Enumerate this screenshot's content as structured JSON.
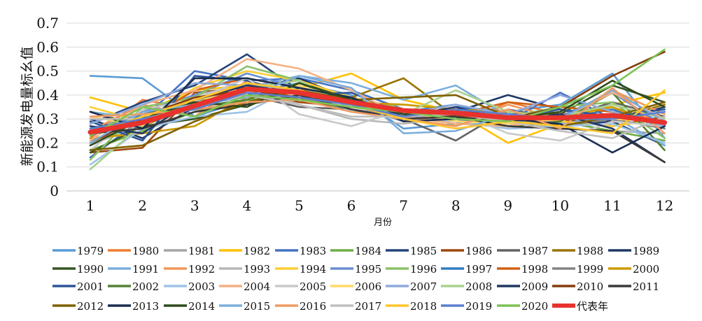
{
  "chart_data": {
    "type": "line",
    "title": "",
    "xlabel": "月份",
    "ylabel": "新能源发电量标幺值",
    "x": [
      1,
      2,
      3,
      4,
      5,
      6,
      7,
      8,
      9,
      10,
      11,
      12
    ],
    "x_tick_labels": [
      "1",
      "2",
      "3",
      "4",
      "5",
      "6",
      "7",
      "8",
      "9",
      "10",
      "11",
      "12"
    ],
    "y_tick_labels": [
      "0",
      "0.1",
      "0.2",
      "0.3",
      "0.4",
      "0.5",
      "0.6",
      "0.7"
    ],
    "ylim": [
      0,
      0.7
    ],
    "grid": "horizontal",
    "legend_position": "bottom",
    "series": [
      {
        "name": "1979",
        "color": "#5b9bd5",
        "values": [
          0.48,
          0.47,
          0.31,
          0.38,
          0.45,
          0.4,
          0.26,
          0.28,
          0.33,
          0.36,
          0.49,
          0.22
        ]
      },
      {
        "name": "1980",
        "color": "#ed7d31",
        "values": [
          0.22,
          0.38,
          0.34,
          0.36,
          0.4,
          0.38,
          0.3,
          0.27,
          0.37,
          0.32,
          0.34,
          0.29
        ]
      },
      {
        "name": "1981",
        "color": "#a5a5a5",
        "values": [
          0.26,
          0.32,
          0.37,
          0.41,
          0.37,
          0.35,
          0.33,
          0.3,
          0.31,
          0.29,
          0.25,
          0.24
        ]
      },
      {
        "name": "1982",
        "color": "#ffc000",
        "values": [
          0.39,
          0.33,
          0.42,
          0.44,
          0.43,
          0.49,
          0.38,
          0.33,
          0.2,
          0.28,
          0.36,
          0.41
        ]
      },
      {
        "name": "1983",
        "color": "#4472c4",
        "values": [
          0.14,
          0.3,
          0.5,
          0.46,
          0.47,
          0.42,
          0.34,
          0.31,
          0.29,
          0.41,
          0.3,
          0.33
        ]
      },
      {
        "name": "1984",
        "color": "#70ad47",
        "values": [
          0.17,
          0.25,
          0.33,
          0.38,
          0.39,
          0.33,
          0.31,
          0.28,
          0.3,
          0.29,
          0.25,
          0.21
        ]
      },
      {
        "name": "1985",
        "color": "#264478",
        "values": [
          0.28,
          0.37,
          0.44,
          0.57,
          0.42,
          0.38,
          0.33,
          0.3,
          0.33,
          0.27,
          0.29,
          0.19
        ]
      },
      {
        "name": "1986",
        "color": "#9e480e",
        "values": [
          0.16,
          0.18,
          0.41,
          0.43,
          0.37,
          0.35,
          0.32,
          0.3,
          0.28,
          0.3,
          0.27,
          0.31
        ]
      },
      {
        "name": "1987",
        "color": "#636363",
        "values": [
          0.21,
          0.27,
          0.38,
          0.4,
          0.35,
          0.34,
          0.3,
          0.21,
          0.34,
          0.3,
          0.37,
          0.31
        ]
      },
      {
        "name": "1988",
        "color": "#997300",
        "values": [
          0.33,
          0.27,
          0.36,
          0.45,
          0.38,
          0.39,
          0.47,
          0.31,
          0.31,
          0.27,
          0.3,
          0.36
        ]
      },
      {
        "name": "1989",
        "color": "#1f3864",
        "values": [
          0.3,
          0.22,
          0.35,
          0.42,
          0.47,
          0.38,
          0.29,
          0.33,
          0.4,
          0.34,
          0.29,
          0.35
        ]
      },
      {
        "name": "1990",
        "color": "#375623",
        "values": [
          0.16,
          0.27,
          0.3,
          0.36,
          0.45,
          0.39,
          0.32,
          0.3,
          0.31,
          0.32,
          0.44,
          0.37
        ]
      },
      {
        "name": "1991",
        "color": "#7cafdd",
        "values": [
          0.33,
          0.3,
          0.35,
          0.43,
          0.48,
          0.45,
          0.38,
          0.44,
          0.31,
          0.28,
          0.31,
          0.19
        ]
      },
      {
        "name": "1992",
        "color": "#f1975a",
        "values": [
          0.25,
          0.36,
          0.31,
          0.46,
          0.4,
          0.34,
          0.3,
          0.27,
          0.36,
          0.3,
          0.42,
          0.32
        ]
      },
      {
        "name": "1993",
        "color": "#b7b7b7",
        "values": [
          0.19,
          0.28,
          0.4,
          0.44,
          0.36,
          0.3,
          0.28,
          0.31,
          0.28,
          0.27,
          0.31,
          0.29
        ]
      },
      {
        "name": "1994",
        "color": "#ffcd33",
        "values": [
          0.35,
          0.29,
          0.43,
          0.5,
          0.46,
          0.39,
          0.34,
          0.33,
          0.31,
          0.29,
          0.27,
          0.3
        ]
      },
      {
        "name": "1995",
        "color": "#698ed0",
        "values": [
          0.23,
          0.33,
          0.4,
          0.49,
          0.43,
          0.36,
          0.29,
          0.35,
          0.33,
          0.31,
          0.41,
          0.27
        ]
      },
      {
        "name": "1996",
        "color": "#8cc168",
        "values": [
          0.13,
          0.35,
          0.39,
          0.52,
          0.46,
          0.35,
          0.36,
          0.34,
          0.31,
          0.35,
          0.37,
          0.22
        ]
      },
      {
        "name": "1997",
        "color": "#327dc2",
        "values": [
          0.23,
          0.32,
          0.36,
          0.4,
          0.45,
          0.38,
          0.33,
          0.36,
          0.29,
          0.3,
          0.34,
          0.26
        ]
      },
      {
        "name": "1998",
        "color": "#d26012",
        "values": [
          0.25,
          0.29,
          0.42,
          0.47,
          0.43,
          0.37,
          0.33,
          0.32,
          0.37,
          0.35,
          0.33,
          0.28
        ]
      },
      {
        "name": "1999",
        "color": "#848484",
        "values": [
          0.2,
          0.31,
          0.38,
          0.42,
          0.39,
          0.34,
          0.31,
          0.3,
          0.26,
          0.27,
          0.3,
          0.26
        ]
      },
      {
        "name": "2000",
        "color": "#cc9a00",
        "values": [
          0.22,
          0.24,
          0.27,
          0.39,
          0.41,
          0.37,
          0.36,
          0.34,
          0.33,
          0.31,
          0.35,
          0.27
        ]
      },
      {
        "name": "2001",
        "color": "#2e5597",
        "values": [
          0.29,
          0.21,
          0.48,
          0.46,
          0.4,
          0.41,
          0.32,
          0.31,
          0.3,
          0.34,
          0.31,
          0.34
        ]
      },
      {
        "name": "2002",
        "color": "#548235",
        "values": [
          0.26,
          0.3,
          0.35,
          0.38,
          0.45,
          0.37,
          0.33,
          0.31,
          0.27,
          0.29,
          0.41,
          0.17
        ]
      },
      {
        "name": "2003",
        "color": "#9dc3e6",
        "values": [
          0.11,
          0.26,
          0.31,
          0.33,
          0.44,
          0.33,
          0.3,
          0.29,
          0.26,
          0.27,
          0.28,
          0.2
        ]
      },
      {
        "name": "2004",
        "color": "#f4b183",
        "values": [
          0.21,
          0.36,
          0.42,
          0.55,
          0.51,
          0.42,
          0.31,
          0.28,
          0.27,
          0.3,
          0.41,
          0.3
        ]
      },
      {
        "name": "2005",
        "color": "#c9c9c9",
        "values": [
          0.17,
          0.34,
          0.38,
          0.47,
          0.32,
          0.27,
          0.34,
          0.33,
          0.24,
          0.21,
          0.29,
          0.27
        ]
      },
      {
        "name": "2006",
        "color": "#ffd966",
        "values": [
          0.31,
          0.27,
          0.38,
          0.41,
          0.44,
          0.36,
          0.33,
          0.29,
          0.28,
          0.3,
          0.3,
          0.29
        ]
      },
      {
        "name": "2007",
        "color": "#8faadc",
        "values": [
          0.28,
          0.36,
          0.45,
          0.44,
          0.42,
          0.35,
          0.32,
          0.36,
          0.32,
          0.4,
          0.33,
          0.27
        ]
      },
      {
        "name": "2008",
        "color": "#a9d18e",
        "values": [
          0.09,
          0.28,
          0.36,
          0.43,
          0.46,
          0.35,
          0.32,
          0.42,
          0.33,
          0.31,
          0.36,
          0.3
        ]
      },
      {
        "name": "2009",
        "color": "#203864",
        "values": [
          0.27,
          0.24,
          0.38,
          0.44,
          0.41,
          0.39,
          0.31,
          0.35,
          0.29,
          0.32,
          0.26,
          0.12
        ]
      },
      {
        "name": "2010",
        "color": "#843c0c",
        "values": [
          0.2,
          0.31,
          0.39,
          0.42,
          0.39,
          0.37,
          0.33,
          0.31,
          0.3,
          0.35,
          0.48,
          0.58
        ]
      },
      {
        "name": "2011",
        "color": "#3a3a3a",
        "values": [
          0.24,
          0.26,
          0.33,
          0.36,
          0.4,
          0.34,
          0.3,
          0.31,
          0.27,
          0.26,
          0.25,
          0.12
        ]
      },
      {
        "name": "2012",
        "color": "#7f6000",
        "values": [
          0.17,
          0.19,
          0.29,
          0.37,
          0.42,
          0.38,
          0.39,
          0.4,
          0.31,
          0.27,
          0.31,
          0.37
        ]
      },
      {
        "name": "2013",
        "color": "#1a2c4f",
        "values": [
          0.33,
          0.26,
          0.47,
          0.47,
          0.43,
          0.39,
          0.29,
          0.3,
          0.3,
          0.28,
          0.16,
          0.27
        ]
      },
      {
        "name": "2014",
        "color": "#2f4b1c",
        "values": [
          0.19,
          0.3,
          0.37,
          0.35,
          0.45,
          0.38,
          0.32,
          0.32,
          0.3,
          0.33,
          0.46,
          0.35
        ]
      },
      {
        "name": "2015",
        "color": "#7caddb",
        "values": [
          0.2,
          0.33,
          0.36,
          0.39,
          0.48,
          0.43,
          0.24,
          0.25,
          0.32,
          0.3,
          0.42,
          0.29
        ]
      },
      {
        "name": "2016",
        "color": "#f09c64",
        "values": [
          0.31,
          0.32,
          0.34,
          0.37,
          0.38,
          0.33,
          0.3,
          0.27,
          0.34,
          0.26,
          0.43,
          0.24
        ]
      },
      {
        "name": "2017",
        "color": "#bfbfbf",
        "values": [
          0.3,
          0.3,
          0.35,
          0.4,
          0.36,
          0.31,
          0.31,
          0.32,
          0.29,
          0.25,
          0.22,
          0.31
        ]
      },
      {
        "name": "2018",
        "color": "#ffc52e",
        "values": [
          0.24,
          0.31,
          0.38,
          0.45,
          0.42,
          0.36,
          0.3,
          0.26,
          0.29,
          0.27,
          0.24,
          0.42
        ]
      },
      {
        "name": "2019",
        "color": "#5c7fcf",
        "values": [
          0.26,
          0.3,
          0.34,
          0.41,
          0.39,
          0.36,
          0.31,
          0.34,
          0.32,
          0.3,
          0.3,
          0.33
        ]
      },
      {
        "name": "2020",
        "color": "#7dc255",
        "values": [
          0.23,
          0.35,
          0.31,
          0.4,
          0.38,
          0.35,
          0.33,
          0.3,
          0.29,
          0.35,
          0.44,
          0.59
        ]
      },
      {
        "name": "代表年",
        "color": "#e8322d",
        "highlight": true,
        "values": [
          0.245,
          0.285,
          0.355,
          0.425,
          0.41,
          0.37,
          0.335,
          0.325,
          0.305,
          0.305,
          0.315,
          0.285
        ]
      }
    ]
  }
}
